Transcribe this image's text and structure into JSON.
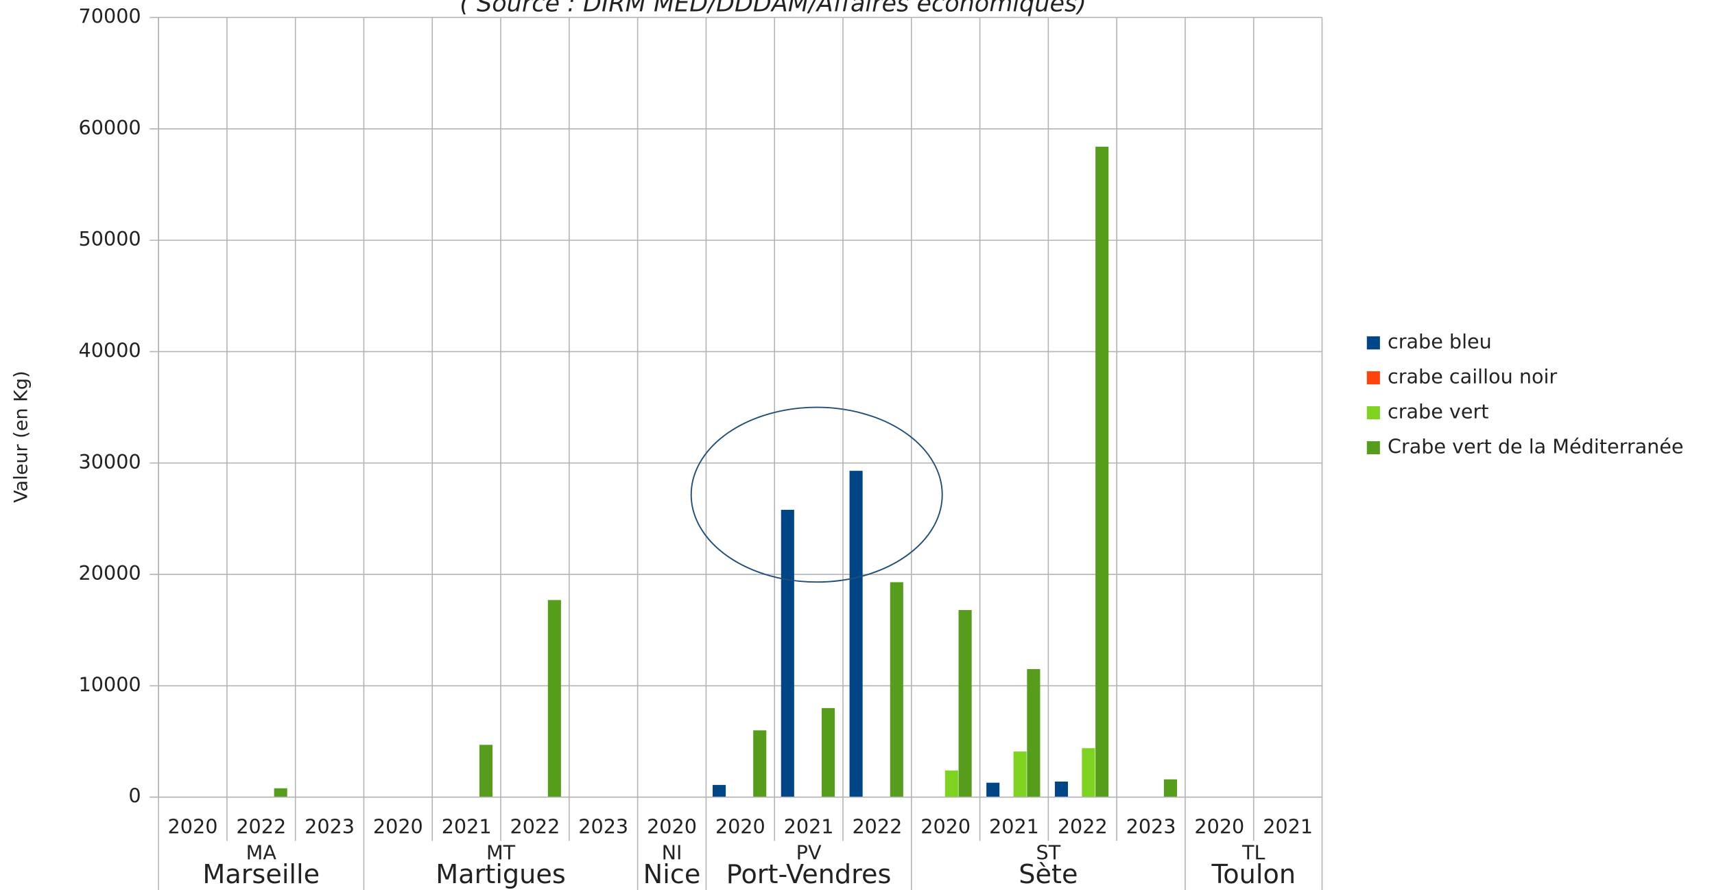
{
  "chart_data": {
    "type": "bar",
    "subtitle": "( Source : DIRM MED/DDDAM/Affaires économiques)",
    "y_label": "Valeur (en Kg)",
    "groups": [
      {
        "name": "MA",
        "city": "Marseille",
        "categories": [
          "2020",
          "2022",
          "2023"
        ]
      },
      {
        "name": "MT",
        "city": "Martigues",
        "categories": [
          "2020",
          "2021",
          "2022",
          "2023"
        ]
      },
      {
        "name": "NI",
        "city": "Nice",
        "categories": [
          "2020"
        ]
      },
      {
        "name": "PV",
        "city": "Port-Vendres",
        "categories": [
          "2020",
          "2021",
          "2022"
        ]
      },
      {
        "name": "ST",
        "city": "Sète",
        "categories": [
          "2020",
          "2021",
          "2022",
          "2023"
        ]
      },
      {
        "name": "TL",
        "city": "Toulon",
        "categories": [
          "2020",
          "2021"
        ]
      }
    ],
    "series": [
      {
        "name": "crabe bleu",
        "color": "#004586",
        "values": [
          null,
          null,
          null,
          null,
          null,
          null,
          null,
          null,
          1100,
          25800,
          29300,
          null,
          1300,
          1400,
          null,
          null,
          null
        ]
      },
      {
        "name": "crabe caillou noir",
        "color": "#ff420e",
        "values": [
          null,
          null,
          null,
          null,
          null,
          null,
          null,
          null,
          null,
          null,
          null,
          null,
          null,
          null,
          null,
          null,
          null
        ]
      },
      {
        "name": "crabe vert",
        "color": "#7ed321",
        "values": [
          null,
          null,
          null,
          null,
          null,
          null,
          null,
          null,
          null,
          null,
          null,
          2400,
          4100,
          4400,
          null,
          null,
          null
        ]
      },
      {
        "name": "Crabe vert de la Méditerranée",
        "color": "#579d1c",
        "values": [
          null,
          800,
          null,
          null,
          4700,
          17700,
          null,
          null,
          6000,
          8000,
          19300,
          16800,
          11500,
          58400,
          1600,
          null,
          null
        ]
      }
    ],
    "ylim": [
      0,
      70000
    ],
    "yticks": [
      0,
      10000,
      20000,
      30000,
      40000,
      50000,
      60000,
      70000
    ],
    "grid": true
  }
}
